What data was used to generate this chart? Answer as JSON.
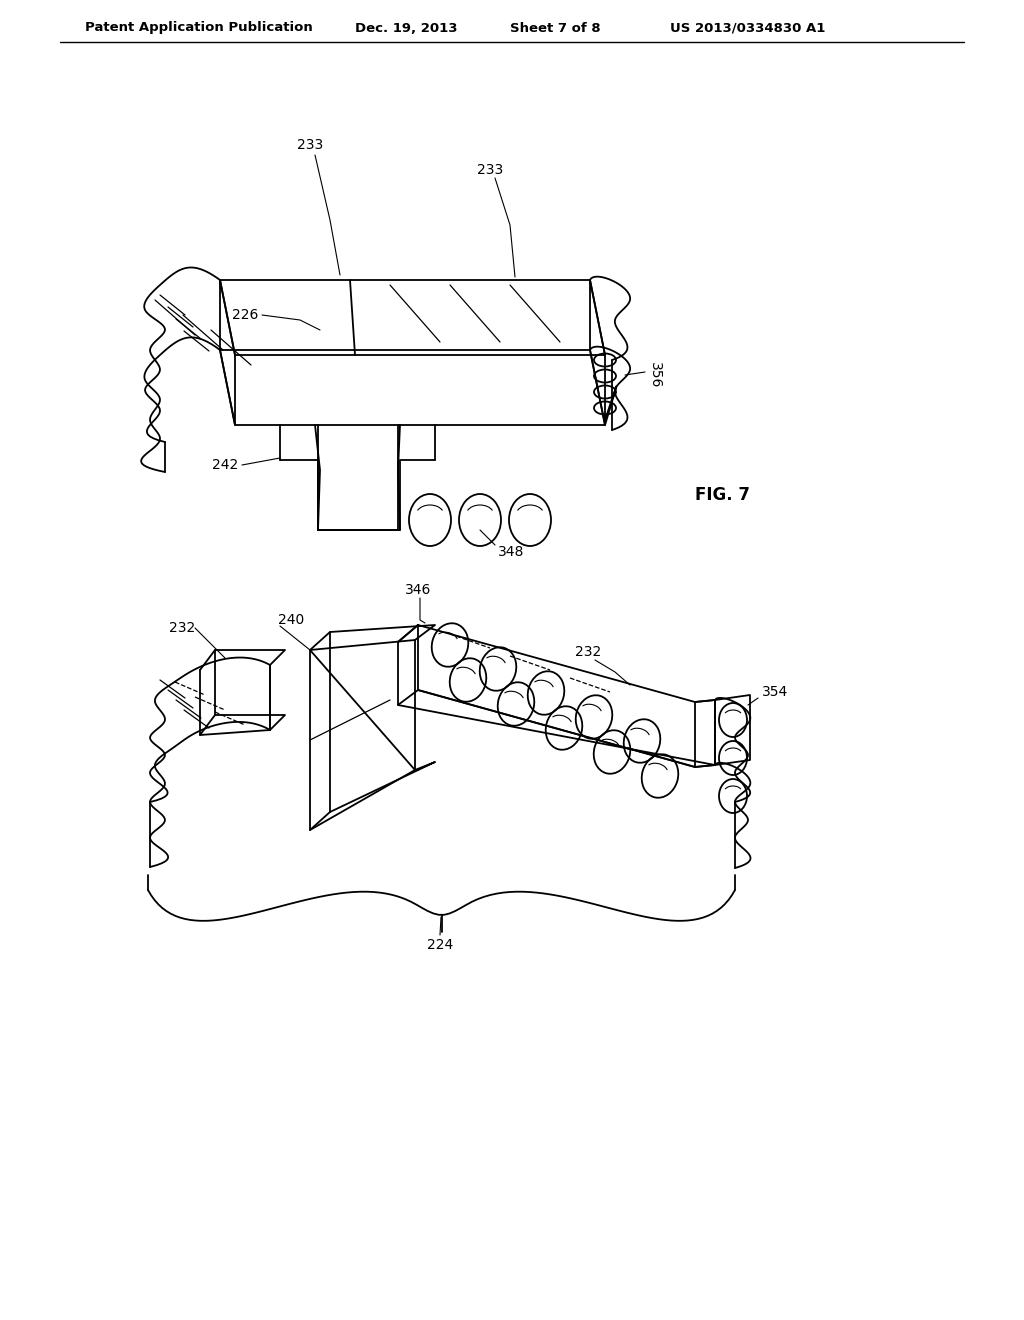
{
  "title": "Patent Application Publication",
  "date": "Dec. 19, 2013",
  "sheet": "Sheet 7 of 8",
  "patent_num": "US 2013/0334830 A1",
  "fig_label": "FIG. 7",
  "background_color": "#ffffff",
  "line_color": "#000000",
  "header_fontsize": 9.5,
  "label_fontsize": 10,
  "fig_label_fontsize": 12
}
